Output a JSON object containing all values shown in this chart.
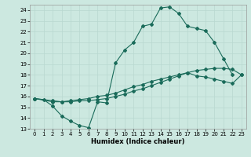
{
  "xlabel": "Humidex (Indice chaleur)",
  "xlim": [
    -0.5,
    23.5
  ],
  "ylim": [
    13,
    24.5
  ],
  "yticks": [
    13,
    14,
    15,
    16,
    17,
    18,
    19,
    20,
    21,
    22,
    23,
    24
  ],
  "xticks": [
    0,
    1,
    2,
    3,
    4,
    5,
    6,
    7,
    8,
    9,
    10,
    11,
    12,
    13,
    14,
    15,
    16,
    17,
    18,
    19,
    20,
    21,
    22,
    23
  ],
  "bg_color": "#cce8e0",
  "line_color": "#1a6b5a",
  "grid_color": "#b8d8d0",
  "line1_x": [
    0,
    1,
    2,
    3,
    4,
    5,
    6,
    7,
    8,
    9,
    10,
    11,
    12,
    13,
    14,
    15,
    16,
    17,
    18,
    19,
    20,
    21,
    22
  ],
  "line1_y": [
    15.8,
    15.7,
    15.1,
    14.2,
    13.7,
    13.3,
    13.1,
    15.5,
    15.4,
    19.1,
    20.3,
    21.0,
    22.5,
    22.7,
    24.2,
    24.3,
    23.7,
    22.5,
    22.3,
    22.1,
    21.0,
    19.5,
    18.0
  ],
  "line2_x": [
    0,
    2,
    3,
    4,
    5,
    6,
    7,
    8,
    9,
    10,
    11,
    12,
    13,
    14,
    15,
    16,
    17,
    18,
    19,
    20,
    21,
    22,
    23
  ],
  "line2_y": [
    15.8,
    15.6,
    15.5,
    15.5,
    15.6,
    15.6,
    15.7,
    15.8,
    16.0,
    16.2,
    16.5,
    16.7,
    17.0,
    17.3,
    17.6,
    17.9,
    18.2,
    18.4,
    18.5,
    18.6,
    18.6,
    18.5,
    18.0
  ],
  "line3_x": [
    0,
    2,
    3,
    4,
    5,
    6,
    7,
    8,
    9,
    10,
    11,
    12,
    13,
    14,
    15,
    16,
    17,
    18,
    19,
    20,
    21,
    22,
    23
  ],
  "line3_y": [
    15.8,
    15.5,
    15.5,
    15.6,
    15.7,
    15.8,
    16.0,
    16.1,
    16.3,
    16.6,
    16.9,
    17.1,
    17.4,
    17.6,
    17.8,
    18.0,
    18.2,
    17.9,
    17.8,
    17.6,
    17.4,
    17.2,
    18.0
  ]
}
